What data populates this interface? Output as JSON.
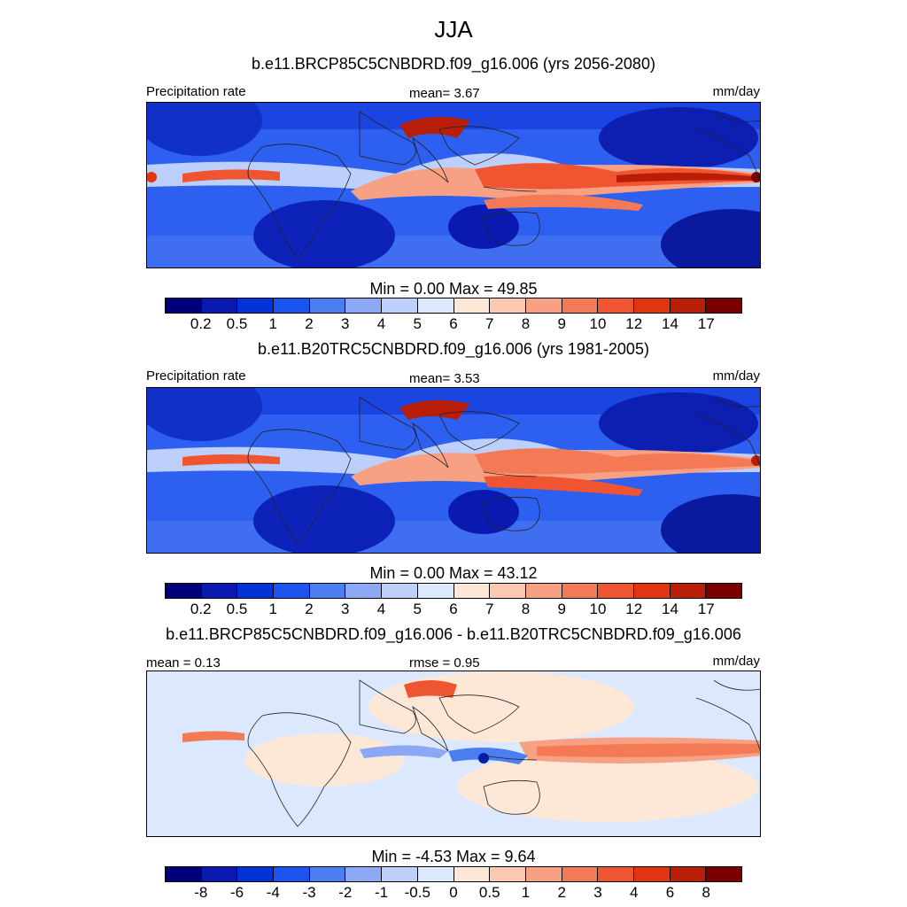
{
  "figure": {
    "title": "JJA",
    "colors": {
      "seq": [
        "#00007a",
        "#0a1ab0",
        "#0033d9",
        "#1a55f2",
        "#4a7ff2",
        "#8aa8f5",
        "#bcd0fb",
        "#dbe8fd",
        "#fde8d8",
        "#fbc8b0",
        "#f8a083",
        "#f47a55",
        "#ef5530",
        "#e03510",
        "#b81d07",
        "#7a0000"
      ],
      "diff": [
        "#00007a",
        "#0a1ab0",
        "#0033d9",
        "#1a55f2",
        "#4a7ff2",
        "#8aa8f5",
        "#bcd0fb",
        "#dbe8fd",
        "#fde8d8",
        "#fbc8b0",
        "#f8a083",
        "#f47a55",
        "#ef5530",
        "#e03510",
        "#b81d07",
        "#7a0000"
      ]
    }
  },
  "panels": [
    {
      "subtitle": "b.e11.BRCP85C5CNBDRD.f09_g16.006 (yrs 2056-2080)",
      "left_label": "Precipitation rate",
      "center_label": "mean=   3.67",
      "units": "mm/day",
      "minmax": "Min =    0.00 Max =  49.85",
      "ticks": [
        "0.2",
        "0.5",
        "1",
        "2",
        "3",
        "4",
        "5",
        "6",
        "7",
        "8",
        "9",
        "10",
        "12",
        "14",
        "17"
      ]
    },
    {
      "subtitle": "b.e11.B20TRC5CNBDRD.f09_g16.006 (yrs 1981-2005)",
      "left_label": "Precipitation rate",
      "center_label": "mean=   3.53",
      "units": "mm/day",
      "minmax": "Min =    0.00 Max =  43.12",
      "ticks": [
        "0.2",
        "0.5",
        "1",
        "2",
        "3",
        "4",
        "5",
        "6",
        "7",
        "8",
        "9",
        "10",
        "12",
        "14",
        "17"
      ]
    },
    {
      "subtitle": "b.e11.BRCP85C5CNBDRD.f09_g16.006 - b.e11.B20TRC5CNBDRD.f09_g16.006",
      "left_label": "mean =   0.13",
      "center_label": "rmse =   0.95",
      "units": "mm/day",
      "minmax": "Min =   -4.53 Max =    9.64",
      "ticks": [
        "-8",
        "-6",
        "-4",
        "-3",
        "-2",
        "-1",
        "-0.5",
        "0",
        "0.5",
        "1",
        "2",
        "3",
        "4",
        "6",
        "8"
      ]
    }
  ]
}
